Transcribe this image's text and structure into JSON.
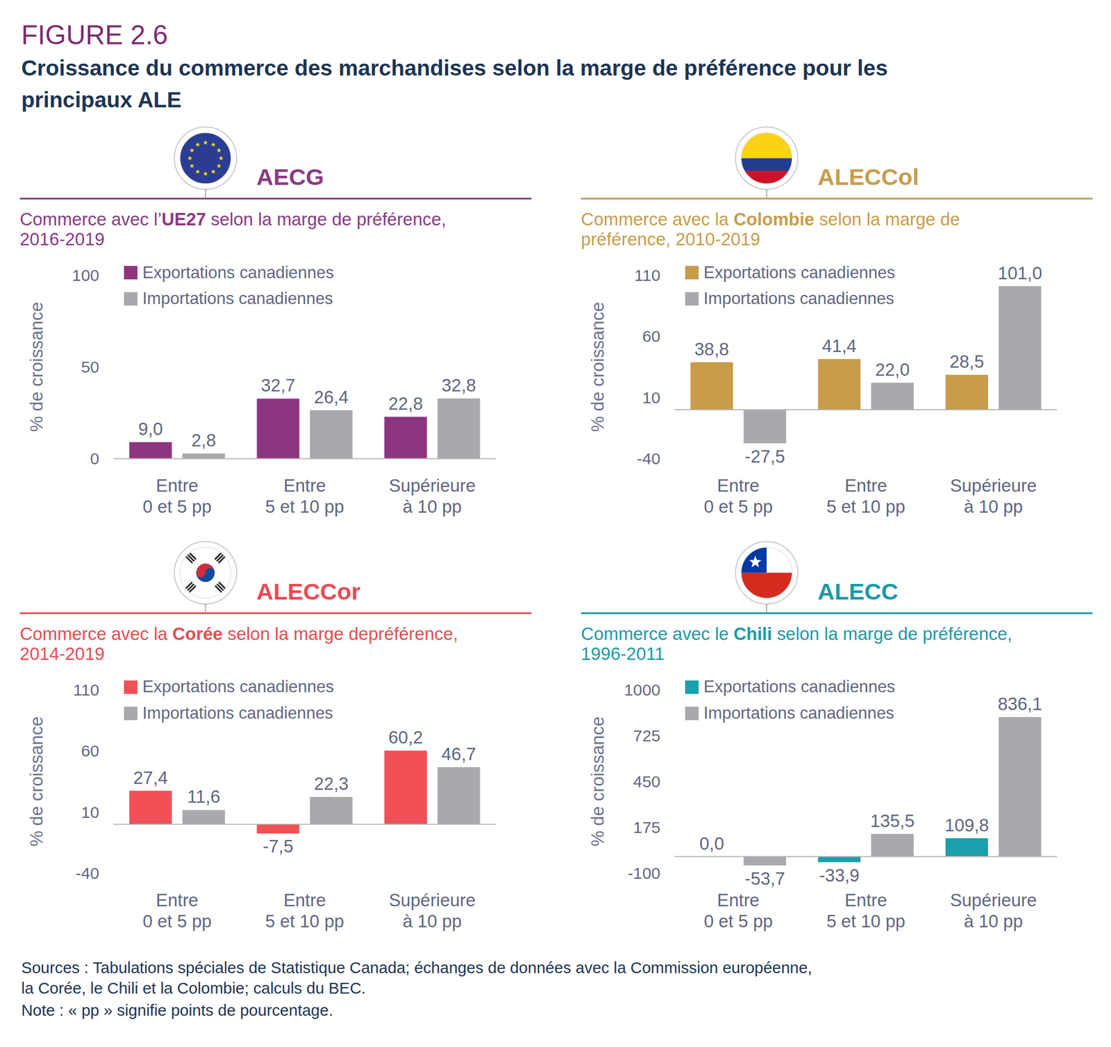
{
  "figure": "FIGURE 2.6",
  "title": "Croissance du commerce des marchandises selon la marge de préférence pour les\nprincipaux ALE",
  "sources": "Sources : Tabulations spéciales de Statistique Canada; échanges de données avec la Commission européenne,\nla Corée, le Chili et la Colombie; calculs du BEC.",
  "note": "Note : « pp » signifie points de pourcentage.",
  "chart_data": [
    {
      "type": "bar",
      "title": "AECG",
      "color": "#8b3a82",
      "subtitle": [
        "Commerce avec l’",
        "UE27",
        " selon la marge de préférence,\n2016-2019"
      ],
      "y_label": "% de croissance",
      "categories": [
        "Entre\n0 et 5 pp",
        "Entre\n5 et 10 pp",
        "Supérieure\nà 10 pp"
      ],
      "series": [
        {
          "name": "Exportations canadiennes",
          "color": "#8e3580",
          "values": [
            9.0,
            32.7,
            22.8
          ],
          "value_labels": [
            "9,0",
            "32,7",
            "22,8"
          ]
        },
        {
          "name": "Importations canadiennes",
          "color": "#a8a9ac",
          "values": [
            2.8,
            26.4,
            32.8
          ],
          "value_labels": [
            "2,8",
            "26,4",
            "32,8"
          ]
        }
      ],
      "ylim": [
        0,
        100
      ],
      "yticks": [
        0,
        50,
        100
      ],
      "grid": false,
      "legend": "upper left",
      "data_labels": true
    },
    {
      "type": "bar",
      "title": "ALECCol",
      "color": "#c99c4a",
      "subtitle": [
        "Commerce avec la ",
        "Colombie",
        " selon la marge de\npréférence, 2010-2019"
      ],
      "y_label": "% de croissance",
      "categories": [
        "Entre\n0 et 5 pp",
        "Entre\n5 et 10 pp",
        "Supérieure\nà 10 pp"
      ],
      "series": [
        {
          "name": "Exportations canadiennes",
          "color": "#c99c4a",
          "values": [
            38.8,
            41.4,
            28.5
          ],
          "value_labels": [
            "38,8",
            "41,4",
            "28,5"
          ]
        },
        {
          "name": "Importations canadiennes",
          "color": "#a8a9ac",
          "values": [
            -27.5,
            22.0,
            101.0
          ],
          "value_labels": [
            "-27,5",
            "22,0",
            "101,0"
          ]
        }
      ],
      "ylim": [
        -40,
        110
      ],
      "yticks": [
        -40,
        10,
        60,
        110
      ],
      "grid": false,
      "legend": "upper left",
      "data_labels": true
    },
    {
      "type": "bar",
      "title": "ALECCor",
      "color": "#e94b52",
      "subtitle": [
        "Commerce avec la ",
        "Corée",
        " selon la marge depréférence,\n2014-2019"
      ],
      "y_label": "% de croissance",
      "categories": [
        "Entre\n0 et 5 pp",
        "Entre\n5 et 10 pp",
        "Supérieure\nà 10 pp"
      ],
      "series": [
        {
          "name": "Exportations canadiennes",
          "color": "#f05056",
          "values": [
            27.4,
            -7.5,
            60.2
          ],
          "value_labels": [
            "27,4",
            "-7,5",
            "60,2"
          ]
        },
        {
          "name": "Importations canadiennes",
          "color": "#a8a9ac",
          "values": [
            11.6,
            22.3,
            46.7
          ],
          "value_labels": [
            "11,6",
            "22,3",
            "46,7"
          ]
        }
      ],
      "ylim": [
        -40,
        110
      ],
      "yticks": [
        -40,
        10,
        60,
        110
      ],
      "grid": false,
      "legend": "upper left",
      "data_labels": true
    },
    {
      "type": "bar",
      "title": "ALECC",
      "color": "#1a9aa6",
      "subtitle": [
        "Commerce avec le ",
        "Chili",
        " selon la marge de préférence,\n1996-2011"
      ],
      "y_label": "% de croissance",
      "categories": [
        "Entre\n0 et 5 pp",
        "Entre\n5 et 10 pp",
        "Supérieure\nà 10 pp"
      ],
      "series": [
        {
          "name": "Exportations canadiennes",
          "color": "#1a9fad",
          "values": [
            0.0,
            -33.9,
            109.8
          ],
          "value_labels": [
            "0,0",
            "-33,9",
            "109,8"
          ]
        },
        {
          "name": "Importations canadiennes",
          "color": "#a8a9ac",
          "values": [
            -53.7,
            135.5,
            836.1
          ],
          "value_labels": [
            "-53,7",
            "135,5",
            "836,1"
          ]
        }
      ],
      "ylim": [
        -100,
        1000
      ],
      "yticks": [
        -100,
        175,
        450,
        725,
        1000
      ],
      "grid": false,
      "legend": "upper left",
      "data_labels": true
    }
  ]
}
